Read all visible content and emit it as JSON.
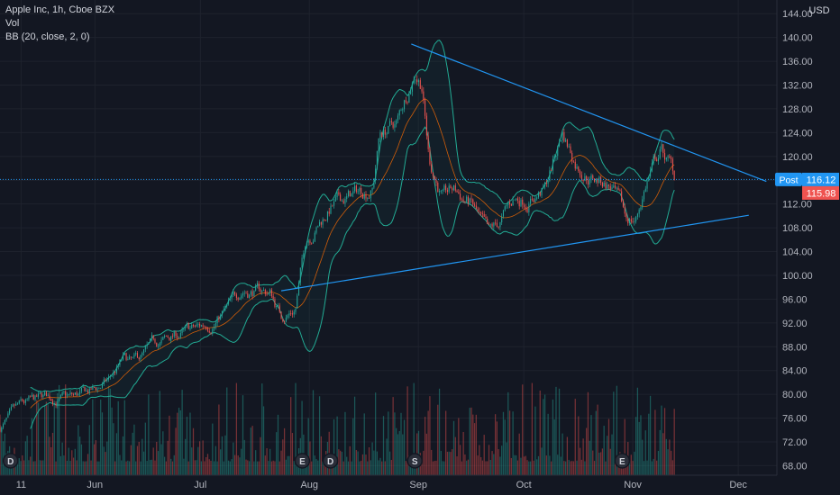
{
  "header": {
    "symbol_line": "Apple Inc, 1h, Cboe BZX",
    "vol_label": "Vol",
    "bb_label": "BB (20, close, 2, 0)"
  },
  "axis": {
    "currency": "USD"
  },
  "price_tags": {
    "post_label": "Post",
    "post_value": "116.12",
    "last_value": "115.98"
  },
  "event_markers": [
    {
      "letter": "D",
      "date": "2020-05-08"
    },
    {
      "letter": "E",
      "date": "2020-07-30"
    },
    {
      "letter": "D",
      "date": "2020-08-07"
    },
    {
      "letter": "S",
      "date": "2020-08-31"
    },
    {
      "letter": "E",
      "date": "2020-10-29"
    }
  ],
  "colors": {
    "background": "#131722",
    "up": "#26a69a",
    "down": "#ef5350",
    "band": "#22ab94",
    "basis": "#ff6d00",
    "trendline": "#2196f3",
    "post_tag": "#2196f3",
    "last_tag": "#ef5350"
  },
  "chart_data": {
    "type": "candlestick",
    "x_tick_labels": [
      "11",
      "Jun",
      "Jul",
      "Aug",
      "Sep",
      "Oct",
      "Nov",
      "Dec"
    ],
    "x_tick_dates": [
      "2020-05-11",
      "2020-06-01",
      "2020-07-01",
      "2020-08-01",
      "2020-09-01",
      "2020-10-01",
      "2020-11-01",
      "2020-12-01"
    ],
    "y_tick_labels": [
      "68.00",
      "72.00",
      "76.00",
      "80.00",
      "84.00",
      "88.00",
      "92.00",
      "96.00",
      "100.00",
      "104.00",
      "108.00",
      "112.00",
      "116.00",
      "120.00",
      "124.00",
      "128.00",
      "132.00",
      "136.00",
      "140.00",
      "144.00"
    ],
    "y_ticks": [
      68,
      72,
      76,
      80,
      84,
      88,
      92,
      96,
      100,
      104,
      108,
      112,
      116,
      120,
      124,
      128,
      132,
      136,
      140,
      144
    ],
    "x_range": [
      "2020-05-05",
      "2020-12-12"
    ],
    "ylim": [
      66.4,
      146.3
    ],
    "price_path": [
      [
        "2020-05-05",
        74.4
      ],
      [
        "2020-05-11",
        77.6
      ],
      [
        "2020-05-18",
        79.2
      ],
      [
        "2020-05-26",
        79.3
      ],
      [
        "2020-06-01",
        80.5
      ],
      [
        "2020-06-05",
        82.2
      ],
      [
        "2020-06-09",
        85.5
      ],
      [
        "2020-06-12",
        84.8
      ],
      [
        "2020-06-18",
        88.0
      ],
      [
        "2020-06-24",
        89.8
      ],
      [
        "2020-07-01",
        91.0
      ],
      [
        "2020-07-06",
        93.0
      ],
      [
        "2020-07-10",
        95.0
      ],
      [
        "2020-07-13",
        97.8
      ],
      [
        "2020-07-17",
        97.5
      ],
      [
        "2020-07-21",
        97.0
      ],
      [
        "2020-07-24",
        93.2
      ],
      [
        "2020-07-28",
        94.6
      ],
      [
        "2020-07-31",
        106.2
      ],
      [
        "2020-08-03",
        108.5
      ],
      [
        "2020-08-07",
        111.5
      ],
      [
        "2020-08-12",
        113.0
      ],
      [
        "2020-08-19",
        115.0
      ],
      [
        "2020-08-21",
        124.0
      ],
      [
        "2020-08-26",
        125.5
      ],
      [
        "2020-08-31",
        135.0
      ],
      [
        "2020-09-02",
        133.0
      ],
      [
        "2020-09-04",
        120.0
      ],
      [
        "2020-09-08",
        113.0
      ],
      [
        "2020-09-11",
        114.0
      ],
      [
        "2020-09-16",
        112.0
      ],
      [
        "2020-09-21",
        106.0
      ],
      [
        "2020-09-24",
        108.0
      ],
      [
        "2020-09-28",
        112.5
      ],
      [
        "2020-10-02",
        113.0
      ],
      [
        "2020-10-07",
        114.5
      ],
      [
        "2020-10-12",
        124.0
      ],
      [
        "2020-10-16",
        119.0
      ],
      [
        "2020-10-20",
        117.0
      ],
      [
        "2020-10-26",
        115.0
      ],
      [
        "2020-10-30",
        109.0
      ],
      [
        "2020-11-02",
        109.5
      ],
      [
        "2020-11-05",
        116.0
      ],
      [
        "2020-11-09",
        121.0
      ],
      [
        "2020-11-12",
        118.0
      ],
      [
        "2020-11-13",
        116.12
      ]
    ],
    "volume_ratio_max": 0.18,
    "trendlines": [
      {
        "from": [
          "2020-08-30",
          138.9
        ],
        "to": [
          "2020-12-09",
          115.8
        ]
      },
      {
        "from": [
          "2020-07-24",
          97.4
        ],
        "to": [
          "2020-12-04",
          110.1
        ]
      }
    ],
    "post_price": 116.12,
    "last_price": 115.98
  }
}
